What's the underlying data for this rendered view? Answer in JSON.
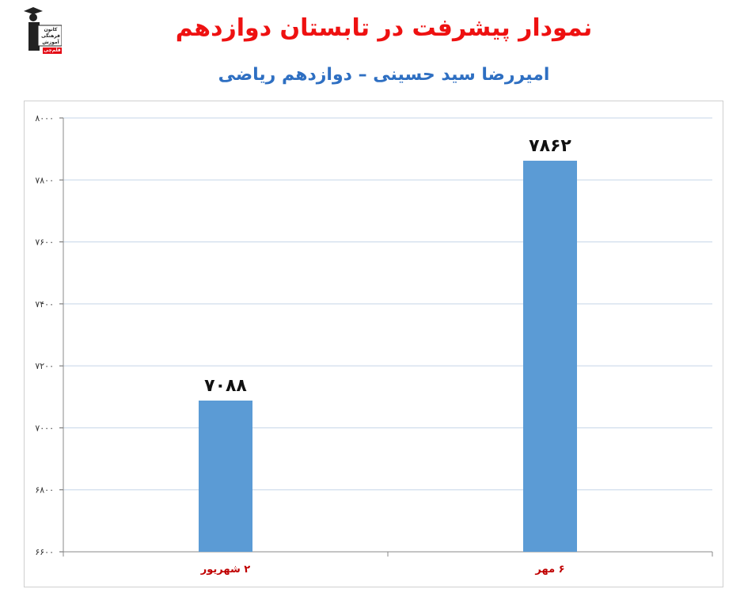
{
  "header": {
    "title": "نمودار پیشرفت در تابستان دوازدهم",
    "subtitle": "امیررضا سید حسینی – دوازدهم ریاضی"
  },
  "logo": {
    "lines": [
      "کانون",
      "فرهنگی",
      "آموزش"
    ],
    "badge": "قلم‌چی"
  },
  "colors": {
    "title": "#ee1111",
    "subtitle": "#2e6fc2",
    "bar": "#5b9bd5",
    "category_label": "#c00000",
    "grid": "#c5d5e8"
  },
  "chart_data": {
    "type": "bar",
    "categories": [
      "۲ شهریور",
      "۶ مهر"
    ],
    "values": [
      7088,
      7862
    ],
    "value_labels": [
      "۷۰۸۸",
      "۷۸۶۲"
    ],
    "ylim": [
      6600,
      8000
    ],
    "yticks": [
      6600,
      6800,
      7000,
      7200,
      7400,
      7600,
      7800,
      8000
    ],
    "ytick_labels": [
      "۶۶۰۰",
      "۶۸۰۰",
      "۷۰۰۰",
      "۷۲۰۰",
      "۷۴۰۰",
      "۷۶۰۰",
      "۷۸۰۰",
      "۸۰۰۰"
    ],
    "grid": true,
    "legend": "none"
  }
}
